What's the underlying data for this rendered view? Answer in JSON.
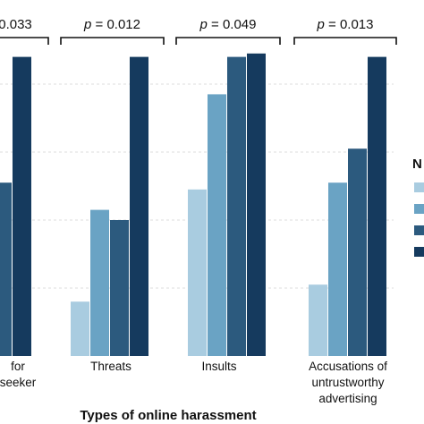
{
  "chart_data": {
    "type": "bar",
    "title": "",
    "xlabel": "Types of online harassment",
    "ylabel": "",
    "ylim": [
      0,
      100
    ],
    "grid": true,
    "legend_title": "N",
    "legend_placement": "right",
    "categories": [
      [
        "for",
        "seeker"
      ],
      [
        "Threats"
      ],
      [
        "Insults"
      ],
      [
        "Accusations of",
        "untrustworthy",
        "advertising"
      ]
    ],
    "series": [
      {
        "color": "#a9cce0",
        "values": [
          null,
          16,
          49,
          21
        ]
      },
      {
        "color": "#6aa3c4",
        "values": [
          null,
          43,
          77,
          51
        ]
      },
      {
        "color": "#2c5a7e",
        "values": [
          51,
          40,
          88,
          61
        ]
      },
      {
        "color": "#153a5e",
        "values": [
          88,
          88,
          89,
          88
        ]
      }
    ],
    "annotations": [
      {
        "text": "0.033",
        "category_index": 0
      },
      {
        "text": "p = 0.012",
        "category_index": 1
      },
      {
        "text": "p = 0.049",
        "category_index": 2
      },
      {
        "text": "p = 0.013",
        "category_index": 3
      }
    ]
  }
}
